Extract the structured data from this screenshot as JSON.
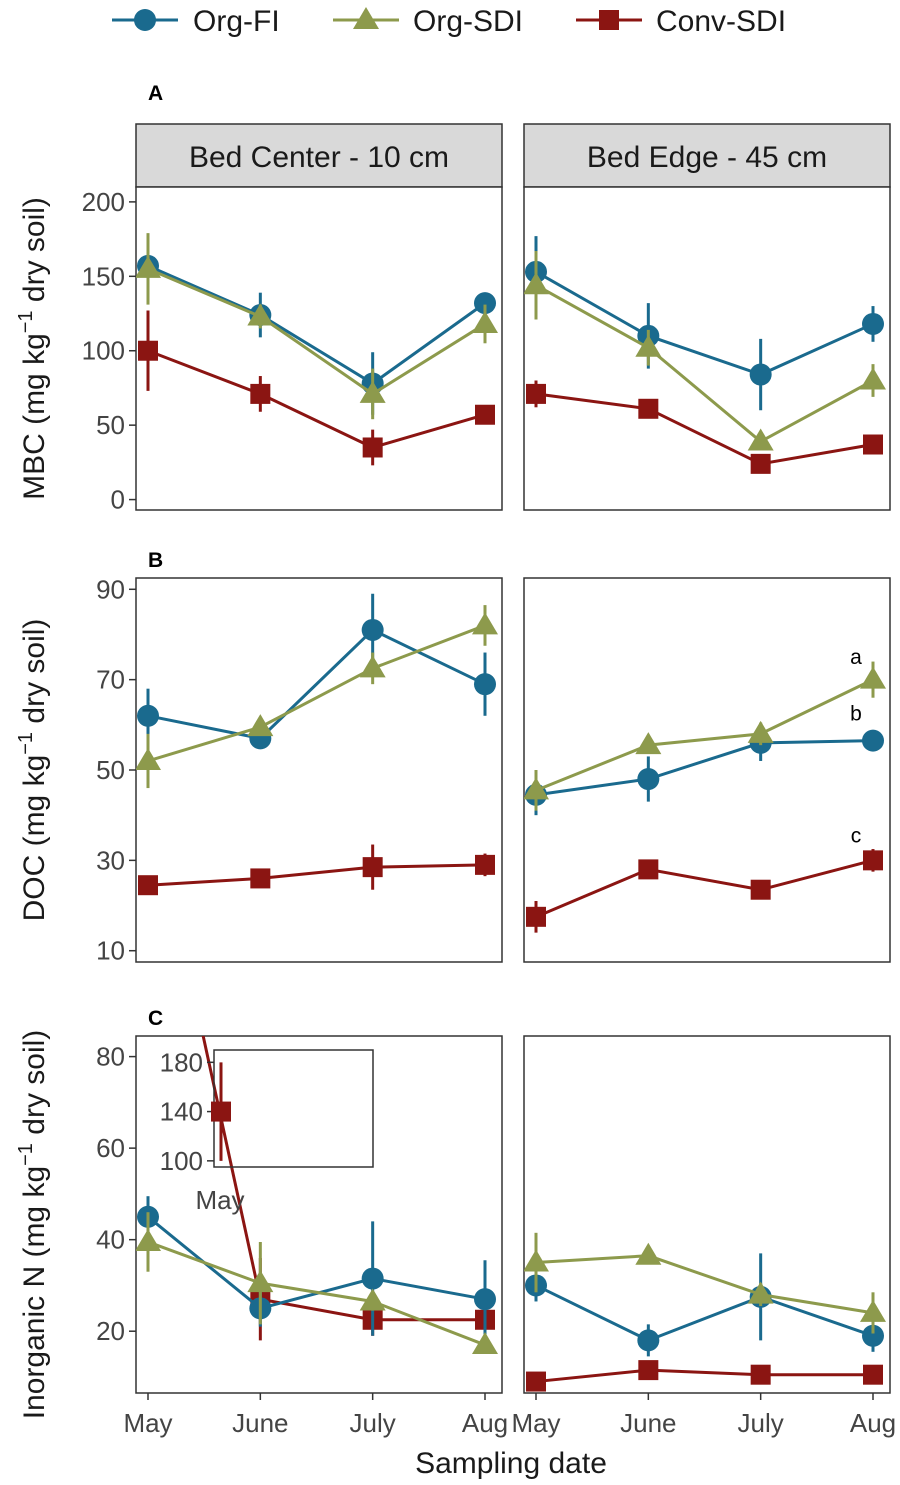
{
  "legend": [
    {
      "name": "Org-FI",
      "marker": "circle",
      "color": "#1a6a8e"
    },
    {
      "name": "Org-SDI",
      "marker": "triangle",
      "color": "#8d9a4c"
    },
    {
      "name": "Conv-SDI",
      "marker": "square",
      "color": "#8b1512"
    }
  ],
  "facets": [
    "Bed Center - 10 cm",
    "Bed Edge - 45 cm"
  ],
  "xlabel": "Sampling date",
  "chart_data": [
    {
      "type": "line",
      "panel": "A",
      "ylabel": "MBC (mg kg^-1 dry soil)",
      "ylabel_parts": {
        "pre": "MBC (mg kg",
        "sup": "−1",
        "post": " dry soil)"
      },
      "categories": [
        "May",
        "June",
        "July",
        "Aug"
      ],
      "ylim": [
        -7,
        210
      ],
      "yticks": [
        0,
        50,
        100,
        150,
        200
      ],
      "facets": [
        {
          "name": "Bed Center - 10 cm",
          "series": [
            {
              "name": "Org-FI",
              "values": [
                157,
                124,
                78,
                132
              ],
              "err": [
                5,
                15,
                21,
                5
              ]
            },
            {
              "name": "Org-SDI",
              "values": [
                155,
                123,
                71,
                118
              ],
              "err": [
                24,
                8,
                17,
                13
              ]
            },
            {
              "name": "Conv-SDI",
              "values": [
                100,
                71,
                35,
                57
              ],
              "err": [
                27,
                12,
                12,
                5
              ]
            }
          ]
        },
        {
          "name": "Bed Edge - 45 cm",
          "series": [
            {
              "name": "Org-FI",
              "values": [
                153,
                110,
                84,
                118
              ],
              "err": [
                24,
                22,
                24,
                12
              ]
            },
            {
              "name": "Org-SDI",
              "values": [
                144,
                102,
                39,
                80
              ],
              "err": [
                23,
                12,
                6,
                11
              ]
            },
            {
              "name": "Conv-SDI",
              "values": [
                71,
                61,
                24,
                37
              ],
              "err": [
                9,
                4,
                5,
                4
              ]
            }
          ]
        }
      ]
    },
    {
      "type": "line",
      "panel": "B",
      "ylabel": "DOC (mg kg^-1 dry soil)",
      "ylabel_parts": {
        "pre": "DOC (mg kg",
        "sup": "−1",
        "post": " dry soil)"
      },
      "categories": [
        "May",
        "June",
        "July",
        "Aug"
      ],
      "ylim": [
        7.5,
        92.5
      ],
      "yticks": [
        10,
        30,
        50,
        70,
        90
      ],
      "facets": [
        {
          "name": "Bed Center - 10 cm",
          "series": [
            {
              "name": "Org-FI",
              "values": [
                62,
                57,
                81,
                69
              ],
              "err": [
                6,
                1.5,
                8,
                7
              ]
            },
            {
              "name": "Org-SDI",
              "values": [
                52,
                59.5,
                72.5,
                82
              ],
              "err": [
                6,
                1.5,
                3.5,
                4.5
              ]
            },
            {
              "name": "Conv-SDI",
              "values": [
                24.5,
                26,
                28.5,
                29
              ],
              "err": [
                1.5,
                1,
                5,
                2.5
              ]
            }
          ]
        },
        {
          "name": "Bed Edge - 45 cm",
          "series": [
            {
              "name": "Org-FI",
              "values": [
                44.5,
                48,
                56,
                56.5
              ],
              "err": [
                4.5,
                5,
                4,
                1.5
              ]
            },
            {
              "name": "Org-SDI",
              "values": [
                45.5,
                55.5,
                58,
                70
              ],
              "err": [
                4.5,
                1.5,
                2.5,
                4
              ]
            },
            {
              "name": "Conv-SDI",
              "values": [
                17.5,
                28,
                23.5,
                30
              ],
              "err": [
                3.5,
                1.5,
                1.5,
                2.5
              ]
            }
          ]
        }
      ],
      "annotations": [
        {
          "facet": 1,
          "category": "Aug",
          "y": 73.5,
          "text": "a"
        },
        {
          "facet": 1,
          "category": "Aug",
          "y": 61,
          "text": "b"
        },
        {
          "facet": 1,
          "category": "Aug",
          "y": 34,
          "text": "c"
        }
      ]
    },
    {
      "type": "line",
      "panel": "C",
      "ylabel": "Inorganic N (mg kg^-1 dry soil)",
      "ylabel_parts": {
        "pre": "Inorganic N (mg kg",
        "sup": "−1",
        "post": " dry soil)"
      },
      "categories": [
        "May",
        "June",
        "July",
        "Aug"
      ],
      "ylim": [
        6.5,
        84.5
      ],
      "yticks": [
        20,
        40,
        60,
        80
      ],
      "facets": [
        {
          "name": "Bed Center - 10 cm",
          "series": [
            {
              "name": "Org-FI",
              "values": [
                45,
                25,
                31.5,
                27
              ],
              "err": [
                4.5,
                4,
                12.5,
                8.5
              ]
            },
            {
              "name": "Org-SDI",
              "values": [
                39.5,
                30.5,
                26.5,
                17
              ],
              "err": [
                6.5,
                9,
                2,
                1.5
              ]
            },
            {
              "name": "Conv-SDI",
              "values": [
                140,
                27,
                22.5,
                22.5
              ],
              "err": [
                40,
                9,
                3.5,
                3.5
              ]
            }
          ]
        },
        {
          "name": "Bed Edge - 45 cm",
          "series": [
            {
              "name": "Org-FI",
              "values": [
                30,
                18,
                27.5,
                19
              ],
              "err": [
                3.5,
                3.5,
                9.5,
                3.5
              ]
            },
            {
              "name": "Org-SDI",
              "values": [
                35,
                36.5,
                28,
                24
              ],
              "err": [
                6.5,
                1.5,
                2.5,
                4.5
              ]
            },
            {
              "name": "Conv-SDI",
              "values": [
                9,
                11.5,
                10.5,
                10.5
              ],
              "err": [
                1,
                1,
                1,
                1
              ]
            }
          ]
        }
      ],
      "inset": {
        "category": "May",
        "series": "Conv-SDI",
        "value": 140,
        "err": 40,
        "ylim": [
          95,
          190
        ],
        "yticks": [
          100,
          140,
          180
        ],
        "label": "May"
      }
    }
  ]
}
